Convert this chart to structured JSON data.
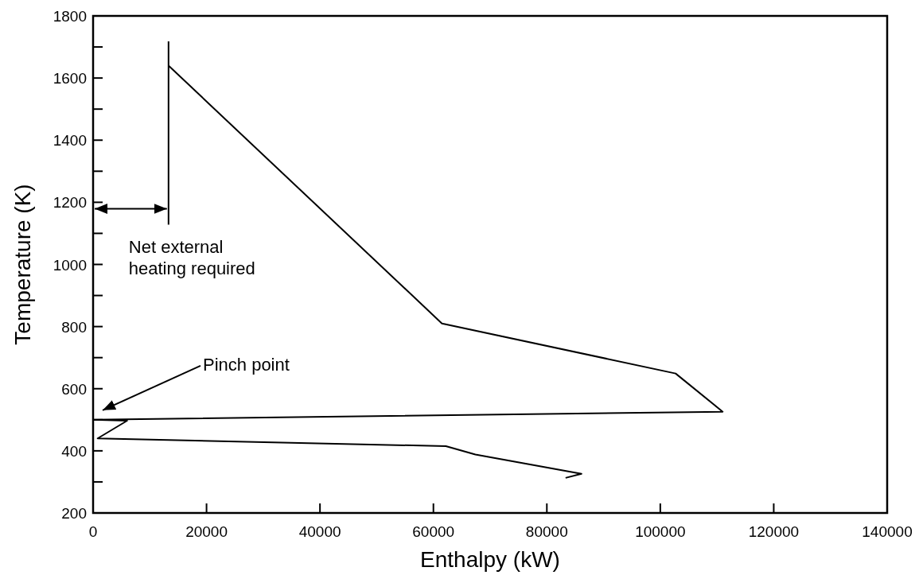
{
  "chart_data": {
    "type": "line",
    "xlabel": "Enthalpy (kW)",
    "ylabel": "Temperature (K)",
    "x": [
      13300,
      61500,
      102700,
      111000,
      0,
      6000,
      800,
      62200,
      67400,
      86100,
      83300
    ],
    "series": [
      {
        "color": "#000000",
        "values": [
          1640,
          810,
          649,
          526,
          500,
          497,
          440,
          415,
          388,
          326,
          313
        ]
      }
    ],
    "xlim": [
      0,
      140000
    ],
    "xticks": [
      0,
      20000,
      40000,
      60000,
      80000,
      100000,
      120000,
      140000
    ],
    "ylim": [
      200,
      1800
    ],
    "yticks": [
      200,
      {
        "value": 300,
        "label": null
      },
      400,
      {
        "value": 500,
        "label": null
      },
      600,
      {
        "value": 700,
        "label": null
      },
      800,
      {
        "value": 900,
        "label": null
      },
      1000,
      {
        "value": 1100,
        "label": null
      },
      1200,
      {
        "value": 1300,
        "label": null
      },
      1400,
      {
        "value": 1500,
        "label": null
      },
      1600,
      {
        "value": 1700,
        "label": null
      },
      1800
    ],
    "annotations": [
      "Net external heating required",
      "Pinch point"
    ],
    "grid": false,
    "marker": "none",
    "line_style": "solid"
  }
}
